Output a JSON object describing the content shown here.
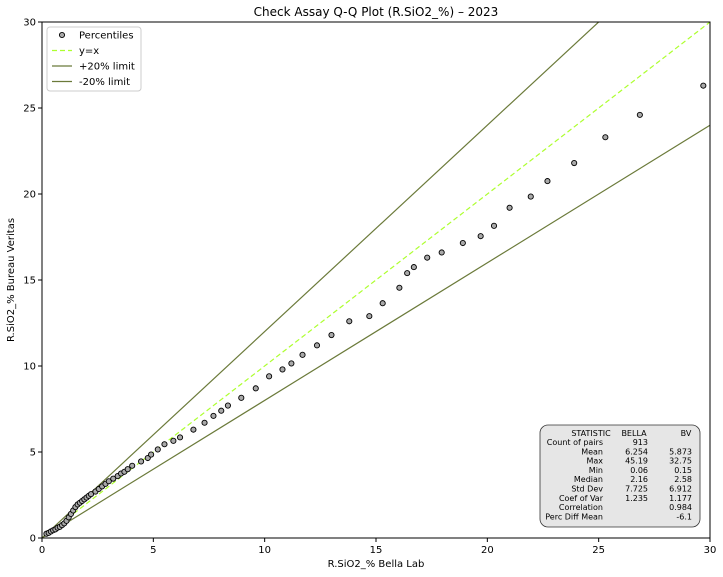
{
  "chart_data": {
    "type": "scatter",
    "title": "Check Assay Q-Q Plot (R.SiO2_%) – 2023",
    "xlabel": "R.SiO2_% Bella Lab",
    "ylabel": "R.SiO2_% Bureau Veritas",
    "xlim": [
      0,
      30
    ],
    "ylim": [
      0,
      30
    ],
    "x_ticks": [
      0,
      5,
      10,
      15,
      20,
      25,
      30
    ],
    "y_ticks": [
      0,
      5,
      10,
      15,
      20,
      25,
      30
    ],
    "grid": false,
    "legend_position": "top-left",
    "series": [
      {
        "name": "Percentiles",
        "kind": "scatter",
        "marker_fill": "#a9a9a9",
        "marker_edge": "#000000",
        "points": [
          [
            0.2,
            0.25
          ],
          [
            0.3,
            0.3
          ],
          [
            0.4,
            0.38
          ],
          [
            0.5,
            0.45
          ],
          [
            0.6,
            0.5
          ],
          [
            0.7,
            0.6
          ],
          [
            0.8,
            0.65
          ],
          [
            0.9,
            0.75
          ],
          [
            1.0,
            0.85
          ],
          [
            1.1,
            1.0
          ],
          [
            1.2,
            1.2
          ],
          [
            1.3,
            1.4
          ],
          [
            1.4,
            1.6
          ],
          [
            1.5,
            1.8
          ],
          [
            1.6,
            1.95
          ],
          [
            1.7,
            2.05
          ],
          [
            1.8,
            2.15
          ],
          [
            1.9,
            2.25
          ],
          [
            2.0,
            2.35
          ],
          [
            2.1,
            2.45
          ],
          [
            2.2,
            2.55
          ],
          [
            2.4,
            2.7
          ],
          [
            2.55,
            2.85
          ],
          [
            2.7,
            3.0
          ],
          [
            2.85,
            3.15
          ],
          [
            3.0,
            3.3
          ],
          [
            3.2,
            3.45
          ],
          [
            3.4,
            3.6
          ],
          [
            3.55,
            3.75
          ],
          [
            3.7,
            3.85
          ],
          [
            3.85,
            4.0
          ],
          [
            4.05,
            4.2
          ],
          [
            4.45,
            4.45
          ],
          [
            4.75,
            4.65
          ],
          [
            4.9,
            4.85
          ],
          [
            5.2,
            5.15
          ],
          [
            5.5,
            5.45
          ],
          [
            5.9,
            5.65
          ],
          [
            6.2,
            5.85
          ],
          [
            6.8,
            6.3
          ],
          [
            7.3,
            6.7
          ],
          [
            7.7,
            7.1
          ],
          [
            8.05,
            7.4
          ],
          [
            8.35,
            7.7
          ],
          [
            8.95,
            8.15
          ],
          [
            9.6,
            8.7
          ],
          [
            10.2,
            9.4
          ],
          [
            10.8,
            9.8
          ],
          [
            11.2,
            10.15
          ],
          [
            11.7,
            10.65
          ],
          [
            12.35,
            11.2
          ],
          [
            13.0,
            11.8
          ],
          [
            13.8,
            12.6
          ],
          [
            14.7,
            12.9
          ],
          [
            15.3,
            13.65
          ],
          [
            16.05,
            14.55
          ],
          [
            16.4,
            15.4
          ],
          [
            16.7,
            15.75
          ],
          [
            17.3,
            16.3
          ],
          [
            17.95,
            16.6
          ],
          [
            18.9,
            17.15
          ],
          [
            19.7,
            17.55
          ],
          [
            20.3,
            18.15
          ],
          [
            21.0,
            19.2
          ],
          [
            21.95,
            19.85
          ],
          [
            22.7,
            20.75
          ],
          [
            23.9,
            21.8
          ],
          [
            25.3,
            23.3
          ],
          [
            26.85,
            24.6
          ],
          [
            29.7,
            26.3
          ]
        ]
      },
      {
        "name": "y=x",
        "kind": "line",
        "slope": 1.0,
        "color": "#adff2f",
        "dash": "5,3"
      },
      {
        "name": "+20% limit",
        "kind": "line",
        "slope": 1.2,
        "color": "#6b7a3a"
      },
      {
        "name": "-20% limit",
        "kind": "line",
        "slope": 0.8,
        "color": "#6b7a3a"
      }
    ],
    "stats_table": {
      "headers": [
        "STATISTIC",
        "BELLA",
        "BV"
      ],
      "rows": [
        [
          "Count of pairs",
          "913",
          ""
        ],
        [
          "Mean",
          "6.254",
          "5.873"
        ],
        [
          "Max",
          "45.19",
          "32.75"
        ],
        [
          "Min",
          "0.06",
          "0.15"
        ],
        [
          "Median",
          "2.16",
          "2.58"
        ],
        [
          "Std Dev",
          "7.725",
          "6.912"
        ],
        [
          "Coef of Var",
          "1.235",
          "1.177"
        ],
        [
          "Correlation",
          "",
          "0.984"
        ],
        [
          "Perc Diff Mean",
          "",
          "-6.1"
        ]
      ]
    }
  }
}
